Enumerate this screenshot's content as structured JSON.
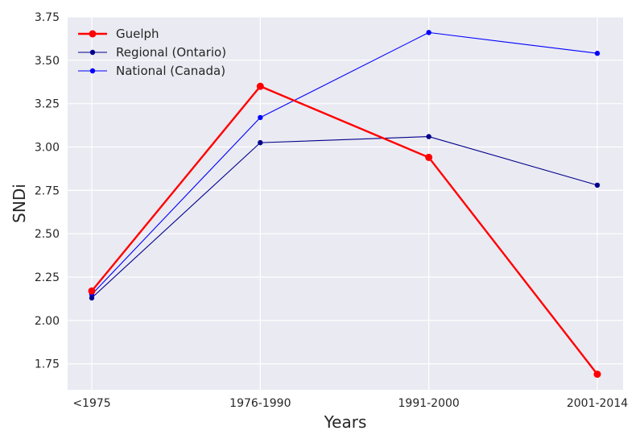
{
  "chart_data": {
    "type": "line",
    "categories": [
      "<1975",
      "1976-1990",
      "1991-2000",
      "2001-2014"
    ],
    "xlabel": "Years",
    "ylabel": "SNDi",
    "ylim": [
      1.6,
      3.75
    ],
    "yticks": [
      "1.75",
      "2.00",
      "2.25",
      "2.50",
      "2.75",
      "3.00",
      "3.25",
      "3.50",
      "3.75"
    ],
    "grid": true,
    "legend_position": "top-left",
    "background_color": "#EAEAF2",
    "series": [
      {
        "name": "Guelph",
        "values": [
          2.17,
          3.35,
          2.94,
          1.69
        ],
        "color": "#FF0000"
      },
      {
        "name": "Regional (Ontario)",
        "values": [
          2.13,
          3.025,
          3.06,
          2.78
        ],
        "color": "#00008B"
      },
      {
        "name": "National (Canada)",
        "values": [
          2.15,
          3.17,
          3.66,
          3.54
        ],
        "color": "#0000FF"
      }
    ]
  }
}
